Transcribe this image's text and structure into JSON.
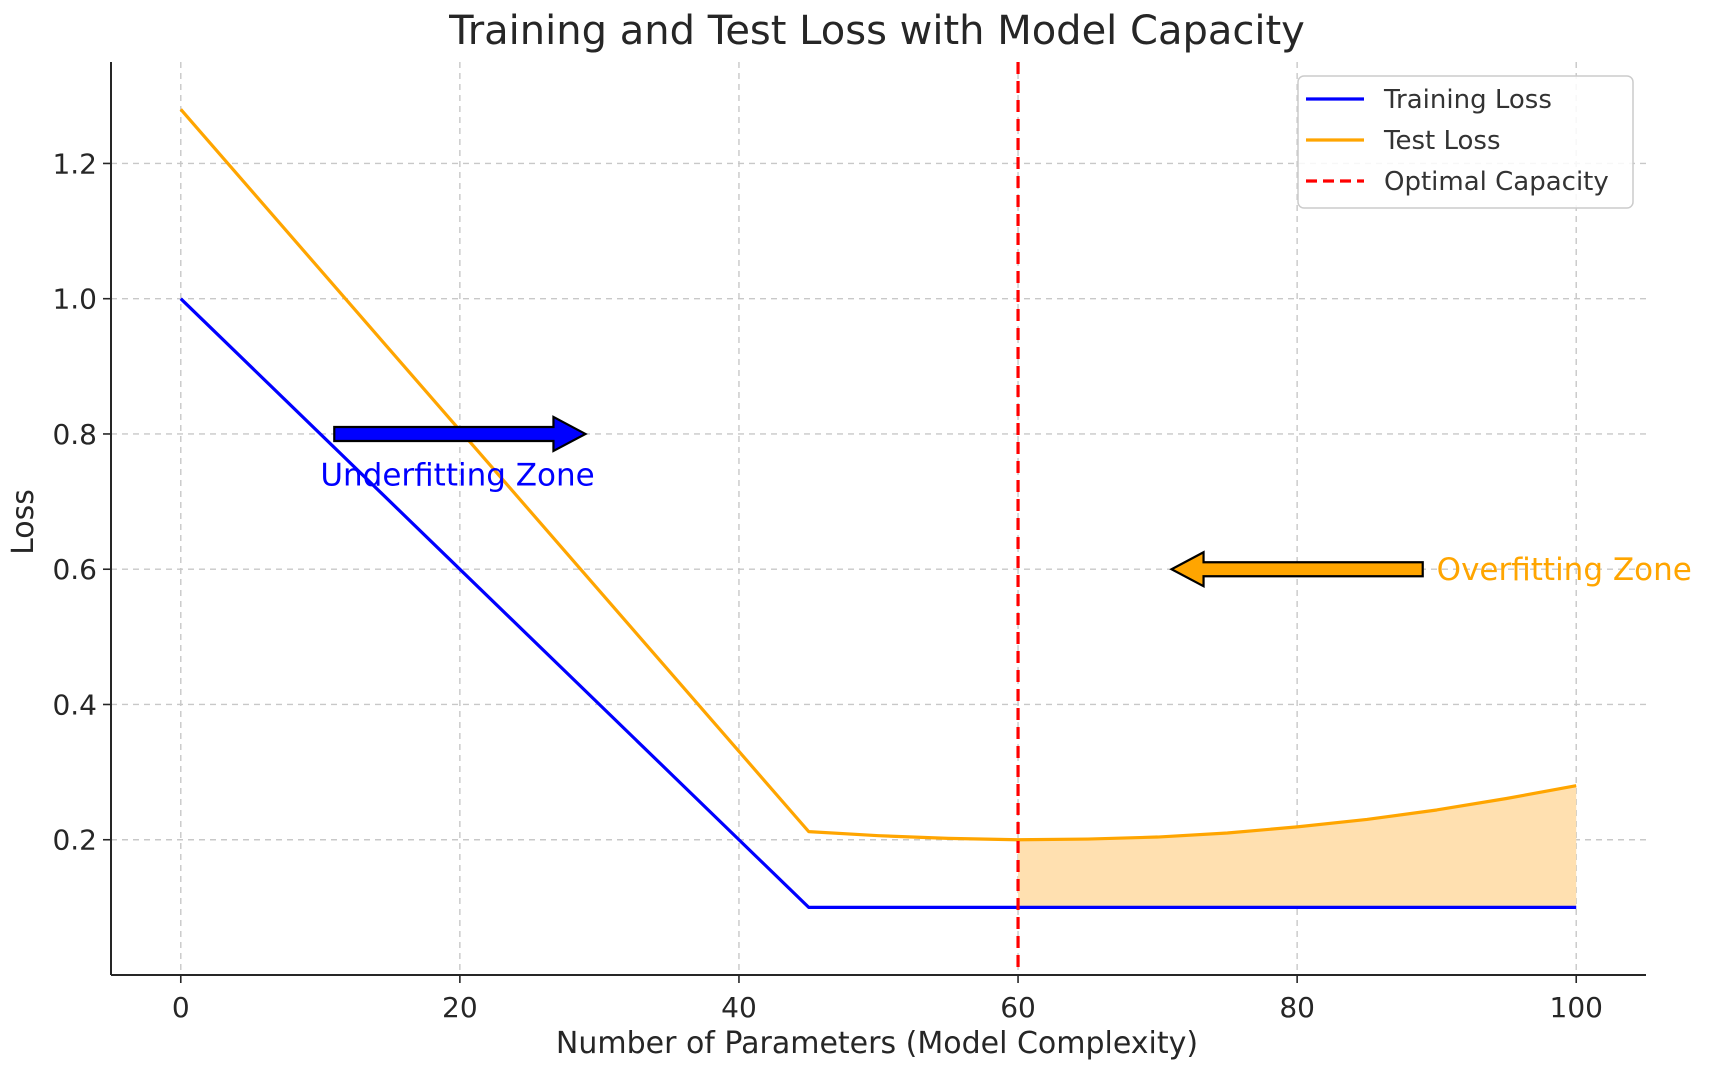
{
  "chart_data": {
    "type": "line",
    "title": "Training and Test Loss with Model Capacity",
    "xlabel": "Number of Parameters (Model Complexity)",
    "ylabel": "Loss",
    "xlim": [
      -5,
      105
    ],
    "ylim": [
      0.0,
      1.35
    ],
    "xticks": [
      0,
      20,
      40,
      60,
      80,
      100
    ],
    "xtick_labels": [
      "0",
      "20",
      "40",
      "60",
      "80",
      "100"
    ],
    "yticks": [
      0.2,
      0.4,
      0.6,
      0.8,
      1.0,
      1.2
    ],
    "ytick_labels": [
      "0.2",
      "0.4",
      "0.6",
      "0.8",
      "1.0",
      "1.2"
    ],
    "grid": true,
    "legend_position": "top-right",
    "series": [
      {
        "name": "Training Loss",
        "color": "#0000ff",
        "style": "solid",
        "x": [
          0,
          45,
          50,
          60,
          70,
          80,
          90,
          100
        ],
        "y": [
          1.0,
          0.1,
          0.1,
          0.1,
          0.1,
          0.1,
          0.1,
          0.1
        ]
      },
      {
        "name": "Test Loss",
        "color": "#ffa500",
        "style": "solid",
        "x": [
          0,
          45,
          50,
          55,
          60,
          65,
          70,
          75,
          80,
          85,
          90,
          95,
          100
        ],
        "y": [
          1.28,
          0.212,
          0.206,
          0.202,
          0.2,
          0.201,
          0.204,
          0.21,
          0.219,
          0.23,
          0.244,
          0.261,
          0.28
        ]
      },
      {
        "name": "Optimal Capacity",
        "color": "#ff0000",
        "style": "dashed",
        "x_value": 60
      }
    ],
    "shaded_region": {
      "between": [
        "Test Loss",
        "Training Loss"
      ],
      "x_from": 60,
      "x_to": 100,
      "color": "#ffe0b0"
    },
    "annotations": [
      {
        "text": "Underfitting Zone",
        "color": "#0000ff",
        "text_x": 10,
        "text_y": 0.74,
        "arrow_from": [
          11,
          0.8
        ],
        "arrow_to": [
          29,
          0.8
        ],
        "arrow_color": "#0000ff"
      },
      {
        "text": "Overfitting Zone",
        "color": "#ffa500",
        "text_x": 90,
        "text_y": 0.6,
        "arrow_from": [
          89,
          0.6
        ],
        "arrow_to": [
          71,
          0.6
        ],
        "arrow_color": "#ffa500"
      }
    ]
  }
}
